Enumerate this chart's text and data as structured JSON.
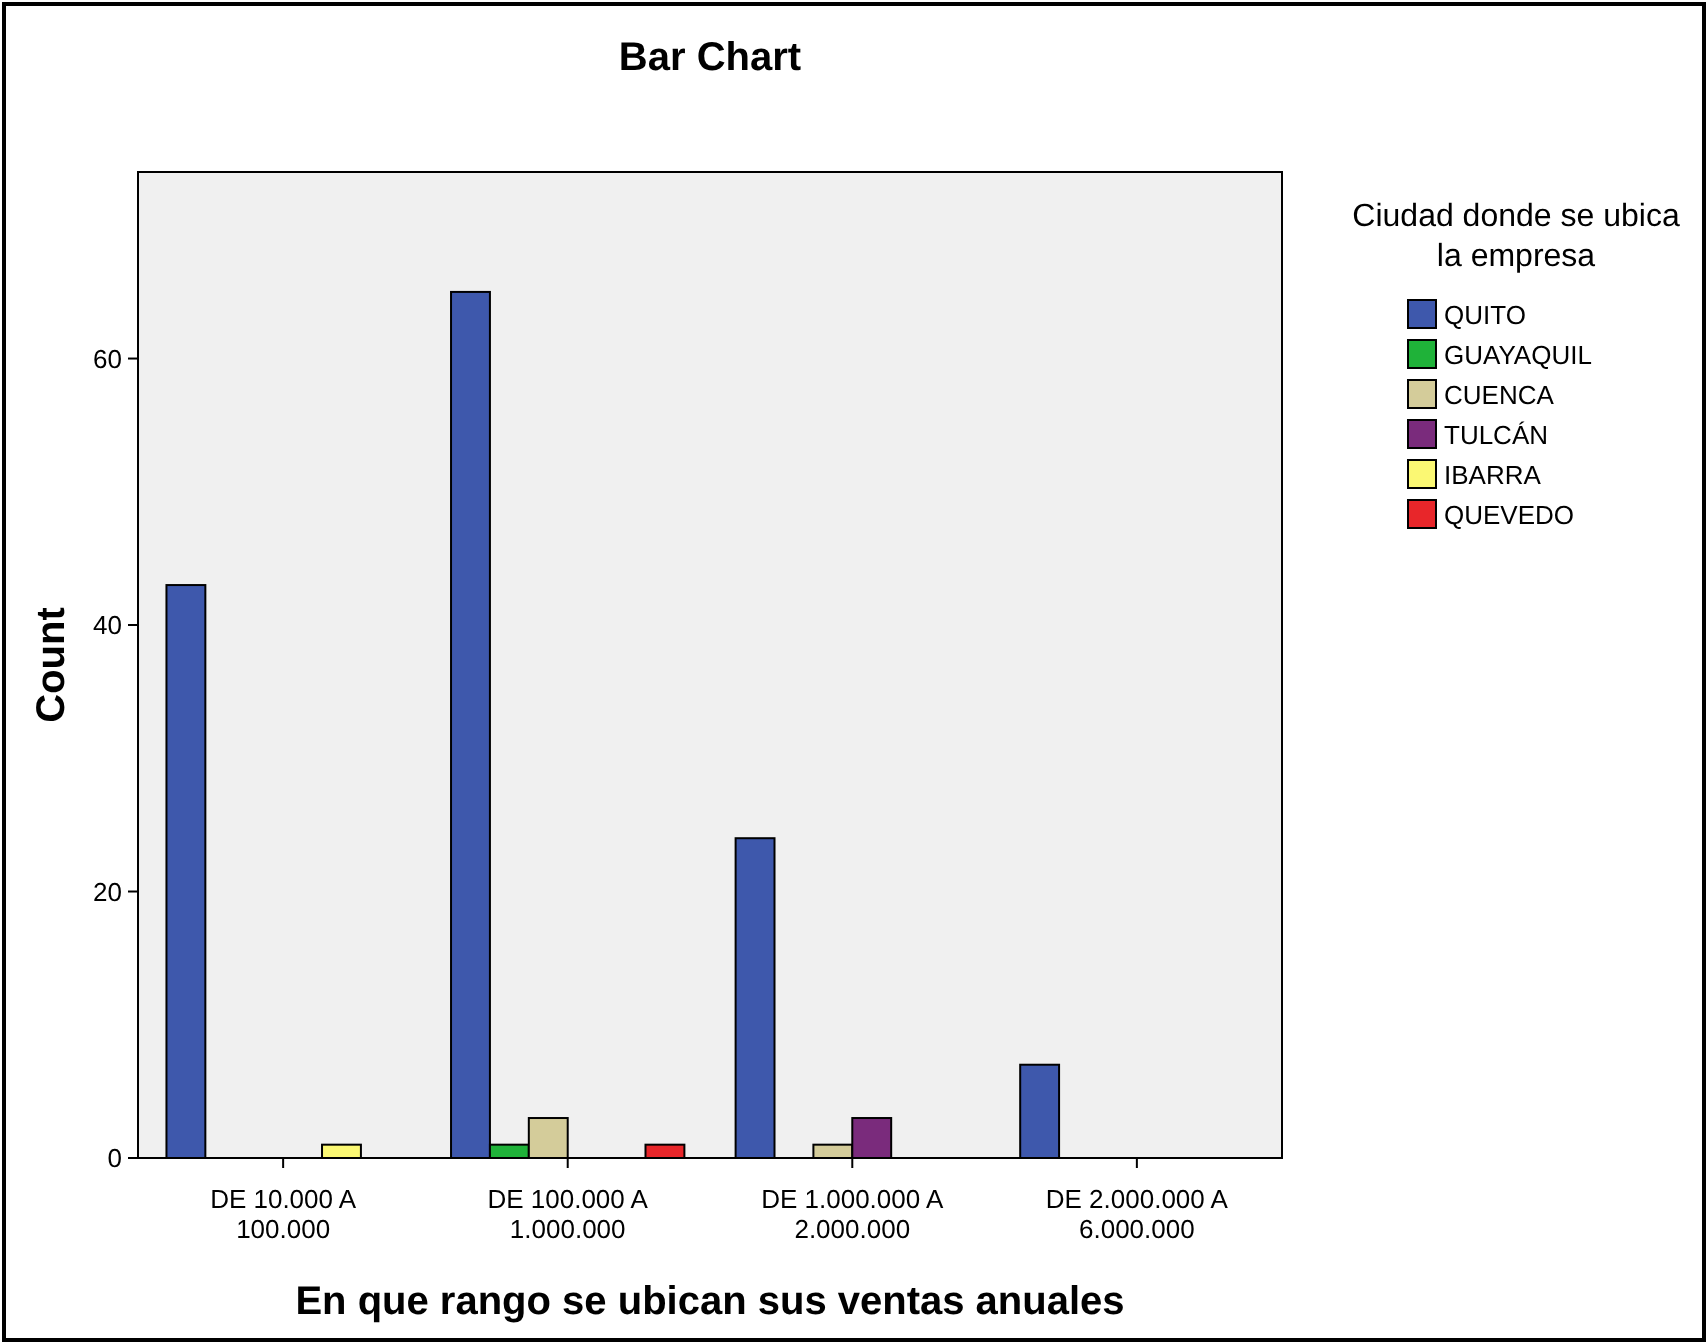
{
  "chart_data": {
    "type": "bar",
    "title": "Bar Chart",
    "xlabel": "En que rango se ubican sus ventas anuales",
    "ylabel": "Count",
    "legend_title": "Ciudad donde se ubica la empresa",
    "categories": [
      "DE 10.000 A 100.000",
      "DE 100.000 A 1.000.000",
      "DE 1.000.000 A 2.000.000",
      "DE 2.000.000 A 6.000.000"
    ],
    "series": [
      {
        "name": "QUITO",
        "color": "#3e58ac",
        "values": [
          43,
          65,
          24,
          7
        ]
      },
      {
        "name": "GUAYAQUIL",
        "color": "#1fb239",
        "values": [
          null,
          1,
          null,
          null
        ]
      },
      {
        "name": "CUENCA",
        "color": "#d4cc9a",
        "values": [
          null,
          3,
          1,
          null
        ]
      },
      {
        "name": "TULCÁN",
        "color": "#7a2b7c",
        "values": [
          null,
          null,
          3,
          null
        ]
      },
      {
        "name": "IBARRA",
        "color": "#fbf873",
        "values": [
          1,
          null,
          null,
          null
        ]
      },
      {
        "name": "QUEVEDO",
        "color": "#e8262a",
        "values": [
          null,
          1,
          null,
          null
        ]
      }
    ],
    "ylim": [
      0,
      74
    ],
    "yticks": [
      0,
      20,
      40,
      60
    ],
    "grid": false,
    "legend": "right"
  }
}
